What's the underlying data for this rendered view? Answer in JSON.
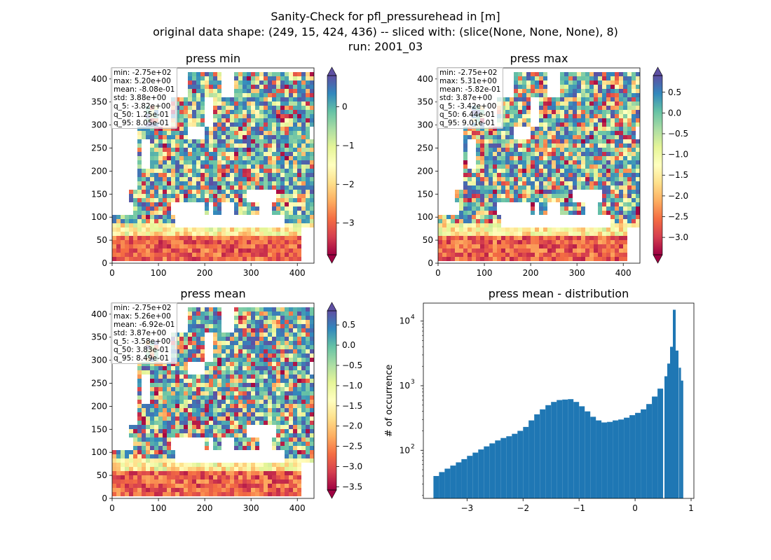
{
  "figure": {
    "title_line1": "Sanity-Check for pfl_pressurehead in [m]",
    "title_line2": "original data shape: (249, 15, 424, 436) -- sliced with: (slice(None, None, None), 8)",
    "title_line3": "run: 2001_03"
  },
  "colors": {
    "histogram_bar": "#1f77b4",
    "colormap": "Spectral",
    "colormap_stops": [
      "#9e0142",
      "#d53e4f",
      "#f46d43",
      "#fdae61",
      "#fee08b",
      "#ffffbf",
      "#e6f598",
      "#abdda4",
      "#66c2a5",
      "#3288bd",
      "#5e4fa2"
    ]
  },
  "panels": {
    "min": {
      "title": "press min",
      "stats": [
        "min: -2.75e+02",
        "max: 5.20e+00",
        "mean: -8.08e-01",
        "std: 3.88e+00",
        "q_5: -3.82e+00",
        "q_50: 1.25e-01",
        "q_95: 8.05e-01"
      ],
      "x_ticks": [
        "0",
        "100",
        "200",
        "300",
        "400"
      ],
      "y_ticks": [
        "0",
        "50",
        "100",
        "150",
        "200",
        "250",
        "300",
        "350",
        "400"
      ],
      "colorbar_ticks": [
        "0",
        "−1",
        "−2",
        "−3"
      ]
    },
    "max": {
      "title": "press max",
      "stats": [
        "min: -2.75e+02",
        "max: 5.31e+00",
        "mean: -5.82e-01",
        "std: 3.87e+00",
        "q_5: -3.42e+00",
        "q_50: 6.44e-01",
        "q_95: 9.01e-01"
      ],
      "x_ticks": [
        "0",
        "100",
        "200",
        "300",
        "400"
      ],
      "y_ticks": [
        "0",
        "50",
        "100",
        "150",
        "200",
        "250",
        "300",
        "350",
        "400"
      ],
      "colorbar_ticks": [
        "0.5",
        "0.0",
        "−0.5",
        "−1.0",
        "−1.5",
        "−2.0",
        "−2.5",
        "−3.0"
      ]
    },
    "mean": {
      "title": "press mean",
      "stats": [
        "min: -2.75e+02",
        "max: 5.26e+00",
        "mean: -6.92e-01",
        "std: 3.87e+00",
        "q_5: -3.58e+00",
        "q_50: 3.83e-01",
        "q_95: 8.49e-01"
      ],
      "x_ticks": [
        "0",
        "100",
        "200",
        "300",
        "400"
      ],
      "y_ticks": [
        "0",
        "50",
        "100",
        "150",
        "200",
        "250",
        "300",
        "350",
        "400"
      ],
      "colorbar_ticks": [
        "0.5",
        "0.0",
        "−0.5",
        "−1.0",
        "−1.5",
        "−2.0",
        "−2.5",
        "−3.0",
        "−3.5"
      ]
    },
    "dist": {
      "title": "press mean - distribution",
      "ylabel": "# of occurrence",
      "x_ticks": [
        "−3",
        "−2",
        "−1",
        "0",
        "1"
      ],
      "y_ticks": [
        "10",
        "10",
        "10"
      ],
      "y_tick_exponents": [
        "2",
        "3",
        "4"
      ]
    }
  },
  "chart_data": [
    {
      "type": "heatmap",
      "title": "press min",
      "xlim": [
        0,
        436
      ],
      "ylim": [
        0,
        424
      ],
      "x_ticks": [
        0,
        100,
        200,
        300,
        400
      ],
      "y_ticks": [
        0,
        50,
        100,
        150,
        200,
        250,
        300,
        350,
        400
      ],
      "colormap": "Spectral",
      "color_range": [
        -3.82,
        0.805
      ]
    },
    {
      "type": "heatmap",
      "title": "press max",
      "xlim": [
        0,
        436
      ],
      "ylim": [
        0,
        424
      ],
      "x_ticks": [
        0,
        100,
        200,
        300,
        400
      ],
      "y_ticks": [
        0,
        50,
        100,
        150,
        200,
        250,
        300,
        350,
        400
      ],
      "colormap": "Spectral",
      "color_range": [
        -3.42,
        0.901
      ]
    },
    {
      "type": "heatmap",
      "title": "press mean",
      "xlim": [
        0,
        436
      ],
      "ylim": [
        0,
        424
      ],
      "x_ticks": [
        0,
        100,
        200,
        300,
        400
      ],
      "y_ticks": [
        0,
        50,
        100,
        150,
        200,
        250,
        300,
        350,
        400
      ],
      "colormap": "Spectral",
      "color_range": [
        -3.58,
        0.849
      ]
    },
    {
      "type": "bar",
      "title": "press mean - distribution",
      "xlabel": "",
      "ylabel": "# of occurrence",
      "yscale": "log",
      "xlim": [
        -3.78,
        1.05
      ],
      "ylim": [
        18,
        19000
      ],
      "x_ticks": [
        -3,
        -2,
        -1,
        0,
        1
      ],
      "y_ticks": [
        100,
        1000,
        10000
      ],
      "x": [
        -3.55,
        -3.45,
        -3.35,
        -3.25,
        -3.15,
        -3.05,
        -2.95,
        -2.85,
        -2.75,
        -2.65,
        -2.55,
        -2.45,
        -2.35,
        -2.25,
        -2.15,
        -2.05,
        -1.95,
        -1.85,
        -1.75,
        -1.65,
        -1.55,
        -1.45,
        -1.35,
        -1.25,
        -1.15,
        -1.05,
        -0.95,
        -0.85,
        -0.75,
        -0.65,
        -0.55,
        -0.45,
        -0.35,
        -0.25,
        -0.15,
        -0.05,
        0.05,
        0.15,
        0.25,
        0.35,
        0.45,
        0.55,
        0.6,
        0.65,
        0.7,
        0.75,
        0.8,
        0.84
      ],
      "values": [
        40,
        46,
        52,
        58,
        65,
        73,
        82,
        92,
        103,
        115,
        128,
        142,
        155,
        165,
        180,
        200,
        230,
        290,
        360,
        430,
        500,
        560,
        600,
        610,
        620,
        560,
        480,
        400,
        330,
        290,
        270,
        275,
        290,
        300,
        320,
        350,
        380,
        430,
        520,
        680,
        900,
        1400,
        2200,
        4000,
        15000,
        3500,
        1900,
        1200
      ]
    }
  ]
}
